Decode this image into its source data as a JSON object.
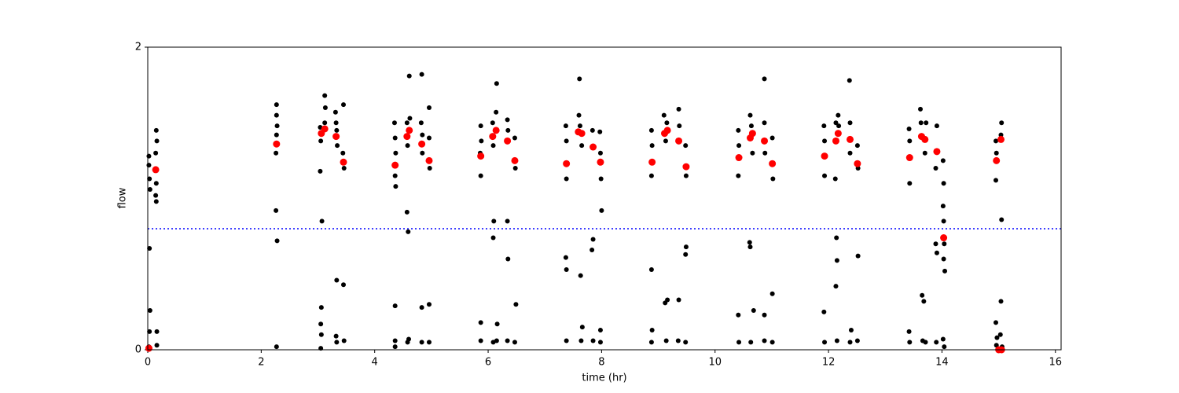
{
  "chart_data": {
    "type": "scatter",
    "xlabel": "time (hr)",
    "ylabel": "flow",
    "xlim": [
      0,
      16.1
    ],
    "ylim": [
      0,
      2
    ],
    "xticks": [
      0,
      2,
      4,
      6,
      8,
      10,
      12,
      14,
      16
    ],
    "yticks": [
      0,
      2
    ],
    "hline": {
      "value": 0.8,
      "color": "#0000ff"
    },
    "series": [
      {
        "color": "#000000",
        "x": [
          0.02,
          0.02,
          0.03,
          0.04,
          0.03,
          0.04,
          0.03,
          0.02,
          0.15,
          0.16,
          0.14,
          0.15,
          0.14,
          0.15,
          0.16,
          0.16,
          2.27,
          2.27,
          2.28,
          2.27,
          2.26,
          2.26,
          2.28,
          2.27,
          3.04,
          3.05,
          3.04,
          3.07,
          3.06,
          3.05,
          3.06,
          3.05,
          3.12,
          3.13,
          3.12,
          3.31,
          3.32,
          3.33,
          3.34,
          3.33,
          3.32,
          3.33,
          3.45,
          3.44,
          3.46,
          3.45,
          3.46,
          4.35,
          4.36,
          4.37,
          4.36,
          4.37,
          4.36,
          4.36,
          4.36,
          4.57,
          4.58,
          4.57,
          4.59,
          4.58,
          4.61,
          4.62,
          4.6,
          4.83,
          4.82,
          4.84,
          4.84,
          4.83,
          4.83,
          4.96,
          4.96,
          4.97,
          4.96,
          4.96,
          5.87,
          5.88,
          5.86,
          5.87,
          5.87,
          5.87,
          6.08,
          6.09,
          6.1,
          6.09,
          6.09,
          6.15,
          6.14,
          6.16,
          6.15,
          6.34,
          6.35,
          6.34,
          6.35,
          6.34,
          6.47,
          6.48,
          6.49,
          6.47,
          7.37,
          7.38,
          7.38,
          7.37,
          7.38,
          7.38,
          7.61,
          7.6,
          7.62,
          7.65,
          7.63,
          7.66,
          7.64,
          7.84,
          7.85,
          7.83,
          7.85,
          7.97,
          7.98,
          7.99,
          8.0,
          7.98,
          7.98,
          8.88,
          8.89,
          8.88,
          8.88,
          8.89,
          8.88,
          9.1,
          9.15,
          9.13,
          9.16,
          9.12,
          9.14,
          9.36,
          9.37,
          9.36,
          9.35,
          9.48,
          9.49,
          9.49,
          9.48,
          9.48,
          10.41,
          10.42,
          10.41,
          10.41,
          10.42,
          10.62,
          10.64,
          10.66,
          10.61,
          10.62,
          10.68,
          10.63,
          10.87,
          10.87,
          10.88,
          10.87,
          10.87,
          11.01,
          11.02,
          11.01,
          11.01,
          11.92,
          11.93,
          11.93,
          11.92,
          11.93,
          12.13,
          12.12,
          12.14,
          12.15,
          12.13,
          12.15,
          12.17,
          12.18,
          12.37,
          12.38,
          12.38,
          12.4,
          12.38,
          12.51,
          12.52,
          12.52,
          12.51,
          13.42,
          13.43,
          13.43,
          13.42,
          13.43,
          13.62,
          13.63,
          13.65,
          13.68,
          13.66,
          13.72,
          13.7,
          13.71,
          13.91,
          13.89,
          13.89,
          13.91,
          13.9,
          14.02,
          14.03,
          14.02,
          14.03,
          14.04,
          14.03,
          14.05,
          14.04,
          14.02,
          14.95,
          14.96,
          14.95,
          14.95,
          14.97,
          14.96,
          15.05,
          15.04,
          15.05,
          15.04,
          15.03,
          15.06
        ],
        "values": [
          1.28,
          1.22,
          1.13,
          1.06,
          0.67,
          0.26,
          0.12,
          0.02,
          1.45,
          1.38,
          1.3,
          1.1,
          1.02,
          0.98,
          0.12,
          0.03,
          1.62,
          1.55,
          1.48,
          1.42,
          1.3,
          0.92,
          0.72,
          0.02,
          1.47,
          1.38,
          1.18,
          0.85,
          0.28,
          0.17,
          0.1,
          0.01,
          1.68,
          1.6,
          1.5,
          1.57,
          1.5,
          1.45,
          1.35,
          0.46,
          0.09,
          0.05,
          1.62,
          1.3,
          1.2,
          0.43,
          0.06,
          1.5,
          1.4,
          1.3,
          1.15,
          1.08,
          0.29,
          0.06,
          0.02,
          1.5,
          1.35,
          0.91,
          0.78,
          0.05,
          1.81,
          1.53,
          0.07,
          1.82,
          1.5,
          1.42,
          1.3,
          0.28,
          0.05,
          1.6,
          1.4,
          1.2,
          0.3,
          0.05,
          1.48,
          1.38,
          1.3,
          1.15,
          0.18,
          0.06,
          1.5,
          1.35,
          0.85,
          0.74,
          0.05,
          1.76,
          1.57,
          0.17,
          0.06,
          1.52,
          1.45,
          0.85,
          0.6,
          0.06,
          1.4,
          1.2,
          0.3,
          0.05,
          1.48,
          1.38,
          1.13,
          0.61,
          0.53,
          0.06,
          1.79,
          1.55,
          1.48,
          1.35,
          0.49,
          0.15,
          0.06,
          1.45,
          0.73,
          0.66,
          0.06,
          1.44,
          1.3,
          1.13,
          0.92,
          0.13,
          0.05,
          1.45,
          1.35,
          1.15,
          0.53,
          0.13,
          0.05,
          1.55,
          1.5,
          1.38,
          0.33,
          0.31,
          0.06,
          1.59,
          1.48,
          0.33,
          0.06,
          1.35,
          1.15,
          0.68,
          0.63,
          0.05,
          1.45,
          1.35,
          1.15,
          0.23,
          0.05,
          1.55,
          1.48,
          1.3,
          0.71,
          0.68,
          0.26,
          0.05,
          1.79,
          1.5,
          1.3,
          0.23,
          0.06,
          1.4,
          1.13,
          0.37,
          0.05,
          1.48,
          1.38,
          1.15,
          0.25,
          0.05,
          1.5,
          1.13,
          0.74,
          0.59,
          0.42,
          0.06,
          1.55,
          1.48,
          1.78,
          1.5,
          1.3,
          0.13,
          0.05,
          1.35,
          1.2,
          0.62,
          0.06,
          1.46,
          1.38,
          1.1,
          0.12,
          0.05,
          1.59,
          1.5,
          0.36,
          0.32,
          0.06,
          1.5,
          1.3,
          0.05,
          1.48,
          1.2,
          0.7,
          0.64,
          0.05,
          1.25,
          1.1,
          0.95,
          0.85,
          0.7,
          0.6,
          0.52,
          0.02,
          0.07,
          1.38,
          1.3,
          1.12,
          0.18,
          0.08,
          0.03,
          1.5,
          1.42,
          0.86,
          0.32,
          0.1,
          0.02
        ]
      },
      {
        "color": "#ff0000",
        "x": [
          0.02,
          0.14,
          2.27,
          3.06,
          3.12,
          3.32,
          3.45,
          4.36,
          4.57,
          4.61,
          4.83,
          4.96,
          5.87,
          6.08,
          6.14,
          6.34,
          6.47,
          7.38,
          7.59,
          7.65,
          7.85,
          7.98,
          8.89,
          9.11,
          9.16,
          9.36,
          9.49,
          10.42,
          10.62,
          10.66,
          10.87,
          11.01,
          11.93,
          12.13,
          12.17,
          12.38,
          12.51,
          13.43,
          13.64,
          13.7,
          13.91,
          14.03,
          14.96,
          15.04,
          15.0,
          15.05
        ],
        "values": [
          0.01,
          1.19,
          1.36,
          1.43,
          1.46,
          1.41,
          1.24,
          1.22,
          1.41,
          1.45,
          1.36,
          1.25,
          1.28,
          1.41,
          1.45,
          1.38,
          1.25,
          1.23,
          1.44,
          1.43,
          1.34,
          1.24,
          1.24,
          1.43,
          1.45,
          1.38,
          1.21,
          1.27,
          1.4,
          1.43,
          1.38,
          1.23,
          1.28,
          1.38,
          1.43,
          1.39,
          1.23,
          1.27,
          1.41,
          1.39,
          1.31,
          0.74,
          1.25,
          1.39,
          0.0,
          0.0
        ]
      }
    ]
  }
}
